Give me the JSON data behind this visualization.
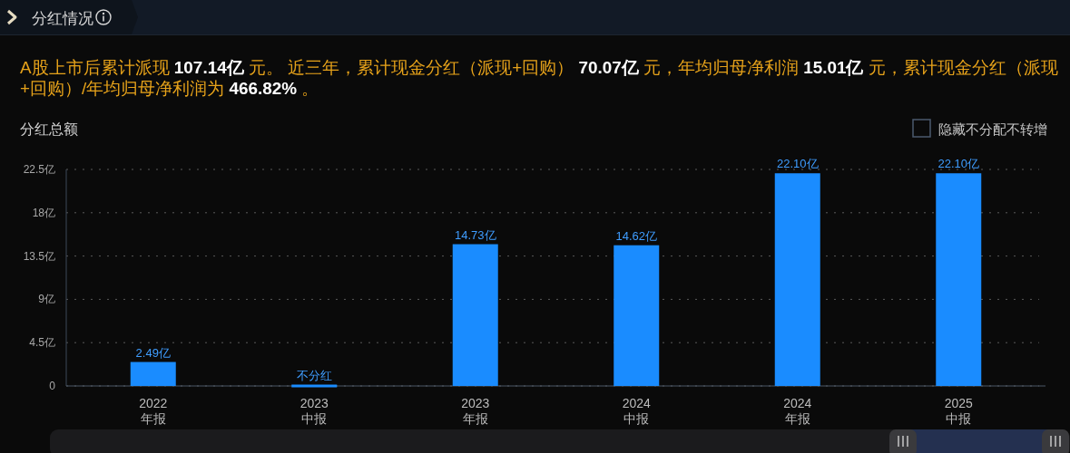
{
  "chart_data": {
    "type": "bar",
    "title": "分红情况",
    "subtitle": "分红总额",
    "categories": [
      "2022\n年报",
      "2023\n中报",
      "2023\n年报",
      "2024\n中报",
      "2024\n年报",
      "2025\n中报"
    ],
    "values": [
      2.49,
      0,
      14.73,
      14.62,
      22.1,
      22.1
    ],
    "color": "#1a8cff",
    "value_labels": [
      "2.49亿",
      "不分红",
      "14.73亿",
      "14.62亿",
      "22.10亿",
      "22.10亿"
    ],
    "ylim": [
      0,
      22.5
    ],
    "yticks": [
      0,
      {
        "value": 4.5,
        "label": "4.5亿"
      },
      {
        "value": 9,
        "label": "9亿"
      },
      {
        "value": 13.5,
        "label": "13.5亿"
      },
      {
        "value": 18,
        "label": "18亿"
      },
      {
        "value": 22.5,
        "label": "22.5亿"
      }
    ],
    "grid": "y",
    "annotations": [
      "A股上市后累计派现 107.14亿 元。 近三年，累计现金分红（派现+回购） 70.07亿 元，年均归母净利润 15.01亿 元，累计现金分红（派现+回购）/年均归母净利润为 466.82% 。",
      "隐藏不分配不转增"
    ]
  }
}
